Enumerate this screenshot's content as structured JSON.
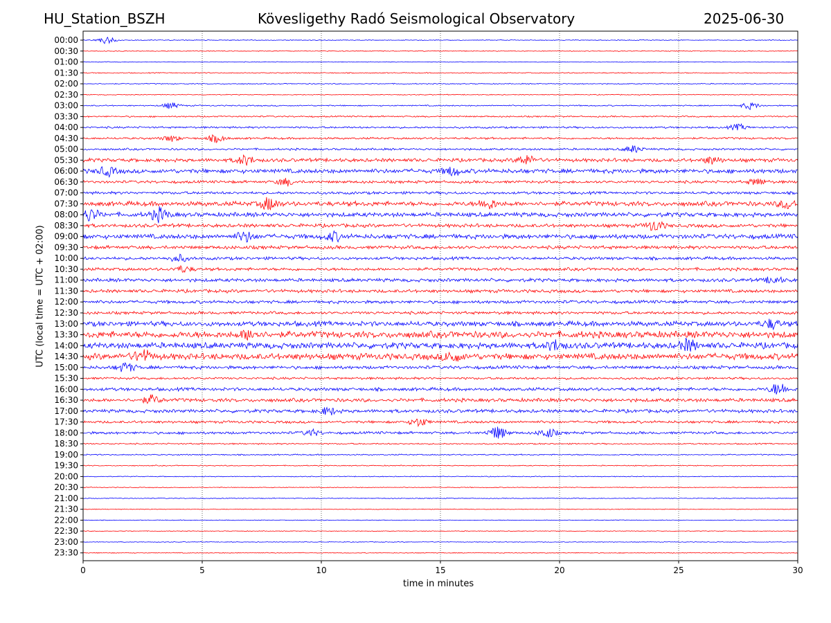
{
  "header": {
    "station": "HU_Station_BSZH",
    "observatory": "Kövesligethy Radó Seismological Observatory",
    "date": "2025-06-30"
  },
  "chart_data": {
    "type": "line",
    "title": "Kövesligethy Radó Seismological Observatory",
    "xlabel": "time in minutes",
    "ylabel": "UTC (local time = UTC + 02:00)",
    "xlim": [
      0,
      30
    ],
    "x_ticks": [
      0,
      5,
      10,
      15,
      20,
      25,
      30
    ],
    "grid": "vertical dotted lines at x ticks",
    "row_labels": [
      "00:00",
      "00:30",
      "01:00",
      "01:30",
      "02:00",
      "02:30",
      "03:00",
      "03:30",
      "04:00",
      "04:30",
      "05:00",
      "05:30",
      "06:00",
      "06:30",
      "07:00",
      "07:30",
      "08:00",
      "08:30",
      "09:00",
      "09:30",
      "10:00",
      "10:30",
      "11:00",
      "11:30",
      "12:00",
      "12:30",
      "13:00",
      "13:30",
      "14:00",
      "14:30",
      "15:00",
      "15:30",
      "16:00",
      "16:30",
      "17:00",
      "17:30",
      "18:00",
      "18:30",
      "19:00",
      "19:30",
      "20:00",
      "20:30",
      "21:00",
      "21:30",
      "22:00",
      "22:30",
      "23:00",
      "23:30"
    ],
    "trace_colors": [
      "#0000ff",
      "#ff0000"
    ],
    "row_noise_level": [
      0.3,
      0.3,
      0.25,
      0.35,
      0.35,
      0.3,
      0.45,
      0.55,
      0.7,
      0.75,
      0.75,
      1.3,
      1.6,
      1.0,
      1.0,
      1.7,
      1.6,
      1.3,
      1.7,
      1.25,
      1.1,
      1.1,
      1.25,
      1.2,
      1.15,
      1.05,
      1.8,
      2.4,
      2.2,
      2.3,
      1.2,
      0.85,
      1.2,
      1.3,
      1.25,
      0.95,
      0.95,
      0.5,
      0.45,
      0.35,
      0.3,
      0.3,
      0.3,
      0.25,
      0.25,
      0.25,
      0.25,
      0.3
    ],
    "events": [
      {
        "row": 0,
        "t": 1.0,
        "amp": 3.0
      },
      {
        "row": 6,
        "t": 3.7,
        "amp": 2.5
      },
      {
        "row": 6,
        "t": 28.0,
        "amp": 3.0
      },
      {
        "row": 8,
        "t": 27.5,
        "amp": 2.5
      },
      {
        "row": 9,
        "t": 3.7,
        "amp": 2.5
      },
      {
        "row": 9,
        "t": 5.6,
        "amp": 3.0
      },
      {
        "row": 10,
        "t": 23.1,
        "amp": 3.0
      },
      {
        "row": 11,
        "t": 6.8,
        "amp": 4.0
      },
      {
        "row": 11,
        "t": 18.6,
        "amp": 4.0
      },
      {
        "row": 11,
        "t": 26.4,
        "amp": 3.0
      },
      {
        "row": 12,
        "t": 1.0,
        "amp": 3.5
      },
      {
        "row": 12,
        "t": 15.5,
        "amp": 3.5
      },
      {
        "row": 13,
        "t": 8.5,
        "amp": 3.0
      },
      {
        "row": 13,
        "t": 28.3,
        "amp": 3.0
      },
      {
        "row": 15,
        "t": 7.8,
        "amp": 5.0
      },
      {
        "row": 15,
        "t": 17.0,
        "amp": 4.0
      },
      {
        "row": 15,
        "t": 29.6,
        "amp": 4.0
      },
      {
        "row": 16,
        "t": 0.3,
        "amp": 5.0
      },
      {
        "row": 16,
        "t": 3.2,
        "amp": 5.5
      },
      {
        "row": 17,
        "t": 24.0,
        "amp": 4.5
      },
      {
        "row": 18,
        "t": 6.8,
        "amp": 4.0
      },
      {
        "row": 18,
        "t": 10.5,
        "amp": 3.5
      },
      {
        "row": 20,
        "t": 4.0,
        "amp": 3.0
      },
      {
        "row": 21,
        "t": 4.2,
        "amp": 2.5
      },
      {
        "row": 22,
        "t": 29.0,
        "amp": 3.0
      },
      {
        "row": 26,
        "t": 28.9,
        "amp": 3.5
      },
      {
        "row": 27,
        "t": 7.0,
        "amp": 4.0
      },
      {
        "row": 28,
        "t": 19.8,
        "amp": 4.0
      },
      {
        "row": 28,
        "t": 25.4,
        "amp": 4.5
      },
      {
        "row": 29,
        "t": 2.5,
        "amp": 4.5
      },
      {
        "row": 29,
        "t": 15.5,
        "amp": 4.0
      },
      {
        "row": 30,
        "t": 1.8,
        "amp": 4.0
      },
      {
        "row": 32,
        "t": 29.2,
        "amp": 5.0
      },
      {
        "row": 33,
        "t": 2.9,
        "amp": 3.5
      },
      {
        "row": 34,
        "t": 10.3,
        "amp": 3.0
      },
      {
        "row": 35,
        "t": 14.1,
        "amp": 3.5
      },
      {
        "row": 36,
        "t": 17.4,
        "amp": 5.5
      },
      {
        "row": 36,
        "t": 19.5,
        "amp": 4.0
      },
      {
        "row": 36,
        "t": 9.6,
        "amp": 2.5
      }
    ]
  }
}
